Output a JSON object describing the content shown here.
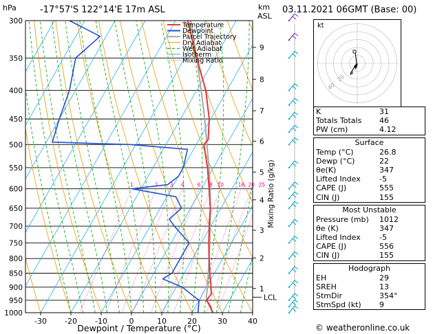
{
  "header": {
    "hpa_label": "hPa",
    "location": "-17°57'S  122°14'E  17m  ASL",
    "km_label": "km",
    "asl_label": "ASL",
    "datetime": "03.11.2021  06GMT  (Base: 00)"
  },
  "legend": [
    "Temperature",
    "Dewpoint",
    "Parcel Trajectory",
    "Dry Adiabat",
    "Wet Adiabat",
    "Isotherm",
    "Mixing Ratio"
  ],
  "colors": {
    "temperature": "#e8343a",
    "dewpoint": "#1f4fd6",
    "parcel": "#a8a8a8",
    "dry_adiabat": "#e09a00",
    "wet_adiabat": "#00a000",
    "isotherm": "#20b0f0",
    "mixing_ratio": "#e8008c",
    "wind": "#00b0d0"
  },
  "chart_data": {
    "type": "line",
    "xlabel": "Dewpoint / Temperature (°C)",
    "ylabel_right": "Mixing Ratio (g/kg)",
    "pressure_levels": [
      300,
      350,
      400,
      450,
      500,
      550,
      600,
      650,
      700,
      750,
      800,
      850,
      900,
      950,
      1000
    ],
    "x_ticks": [
      -30,
      -20,
      -10,
      0,
      10,
      20,
      30,
      40
    ],
    "xlim": [
      -35,
      40
    ],
    "km_labels": [
      {
        "km": "1",
        "p": 905
      },
      {
        "km": "2",
        "p": 798
      },
      {
        "km": "3",
        "p": 712
      },
      {
        "km": "4",
        "p": 628
      },
      {
        "km": "5",
        "p": 560
      },
      {
        "km": "6",
        "p": 493
      },
      {
        "km": "7",
        "p": 435
      },
      {
        "km": "8",
        "p": 382
      },
      {
        "km": "9",
        "p": 335
      }
    ],
    "lcl": {
      "label": "LCL",
      "p": 938
    },
    "mixing_ratio_labels": [
      {
        "label": "1",
        "v": 1
      },
      {
        "label": "2",
        "v": 2
      },
      {
        "label": "3",
        "v": 3
      },
      {
        "label": "4",
        "v": 4
      },
      {
        "label": "6",
        "v": 6
      },
      {
        "label": "8",
        "v": 8
      },
      {
        "label": "10",
        "v": 10
      },
      {
        "label": "16",
        "v": 16
      },
      {
        "label": "20",
        "v": 20
      },
      {
        "label": "25",
        "v": 25
      }
    ],
    "series": [
      {
        "key": "temperature",
        "points": [
          [
            1000,
            26.8
          ],
          [
            975,
            25
          ],
          [
            950,
            22.5
          ],
          [
            925,
            22.8
          ],
          [
            900,
            21.5
          ],
          [
            850,
            18.5
          ],
          [
            800,
            15.5
          ],
          [
            750,
            12.5
          ],
          [
            700,
            9.5
          ],
          [
            650,
            6.5
          ],
          [
            600,
            2.5
          ],
          [
            550,
            -2
          ],
          [
            500,
            -7.5
          ],
          [
            490,
            -7
          ],
          [
            450,
            -10.5
          ],
          [
            400,
            -17
          ],
          [
            350,
            -26
          ],
          [
            300,
            -36
          ]
        ]
      },
      {
        "key": "dewpoint",
        "points": [
          [
            1000,
            22
          ],
          [
            975,
            21
          ],
          [
            950,
            20
          ],
          [
            925,
            16
          ],
          [
            900,
            12
          ],
          [
            870,
            4
          ],
          [
            850,
            6
          ],
          [
            800,
            6
          ],
          [
            750,
            6
          ],
          [
            700,
            -2
          ],
          [
            680,
            -5
          ],
          [
            650,
            -3
          ],
          [
            620,
            -7
          ],
          [
            600,
            -23
          ],
          [
            590,
            -12
          ],
          [
            570,
            -10
          ],
          [
            550,
            -10
          ],
          [
            510,
            -12
          ],
          [
            500,
            -32
          ],
          [
            495,
            -58
          ],
          [
            450,
            -60
          ],
          [
            400,
            -62
          ],
          [
            350,
            -66
          ],
          [
            320,
            -62
          ],
          [
            300,
            -75
          ]
        ]
      },
      {
        "key": "parcel",
        "points": [
          [
            1000,
            26.8
          ],
          [
            950,
            22.5
          ],
          [
            938,
            21.8
          ],
          [
            900,
            20.3
          ],
          [
            850,
            18
          ],
          [
            800,
            15.5
          ],
          [
            750,
            12.8
          ],
          [
            700,
            9.8
          ],
          [
            650,
            6.5
          ],
          [
            600,
            2.8
          ],
          [
            550,
            -1.5
          ],
          [
            500,
            -6.5
          ],
          [
            450,
            -12
          ],
          [
            400,
            -18.5
          ],
          [
            350,
            -26
          ],
          [
            300,
            -35
          ]
        ]
      }
    ],
    "wind_barbs": [
      300,
      325,
      350,
      400,
      425,
      450,
      475,
      500,
      550,
      600,
      625,
      650,
      700,
      750,
      800,
      850,
      900,
      950,
      975,
      1000
    ]
  },
  "hodograph": {
    "unit_label": "kt",
    "ring_labels": [
      "20",
      "40"
    ]
  },
  "indices": [
    {
      "label": "K",
      "value": "31"
    },
    {
      "label": "Totals Totals",
      "value": "46"
    },
    {
      "label": "PW (cm)",
      "value": "4.12"
    }
  ],
  "surface": {
    "title": "Surface",
    "rows": [
      {
        "label": "Temp (°C)",
        "value": "26.8"
      },
      {
        "label": "Dewp (°C)",
        "value": "22"
      },
      {
        "label": "θe(K)",
        "value": "347"
      },
      {
        "label": "Lifted Index",
        "value": "-5"
      },
      {
        "label": "CAPE (J)",
        "value": "555"
      },
      {
        "label": "CIN (J)",
        "value": "155"
      }
    ]
  },
  "most_unstable": {
    "title": "Most Unstable",
    "rows": [
      {
        "label": "Pressure (mb)",
        "value": "1012"
      },
      {
        "label": "θe (K)",
        "value": "347"
      },
      {
        "label": "Lifted Index",
        "value": "-5"
      },
      {
        "label": "CAPE (J)",
        "value": "556"
      },
      {
        "label": "CIN (J)",
        "value": "155"
      }
    ]
  },
  "hodograph_table": {
    "title": "Hodograph",
    "rows": [
      {
        "label": "EH",
        "value": "29"
      },
      {
        "label": "SREH",
        "value": "13"
      },
      {
        "label": "StmDir",
        "value": "354°"
      },
      {
        "label": "StmSpd (kt)",
        "value": "9"
      }
    ]
  },
  "credit": "© weatheronline.co.uk"
}
